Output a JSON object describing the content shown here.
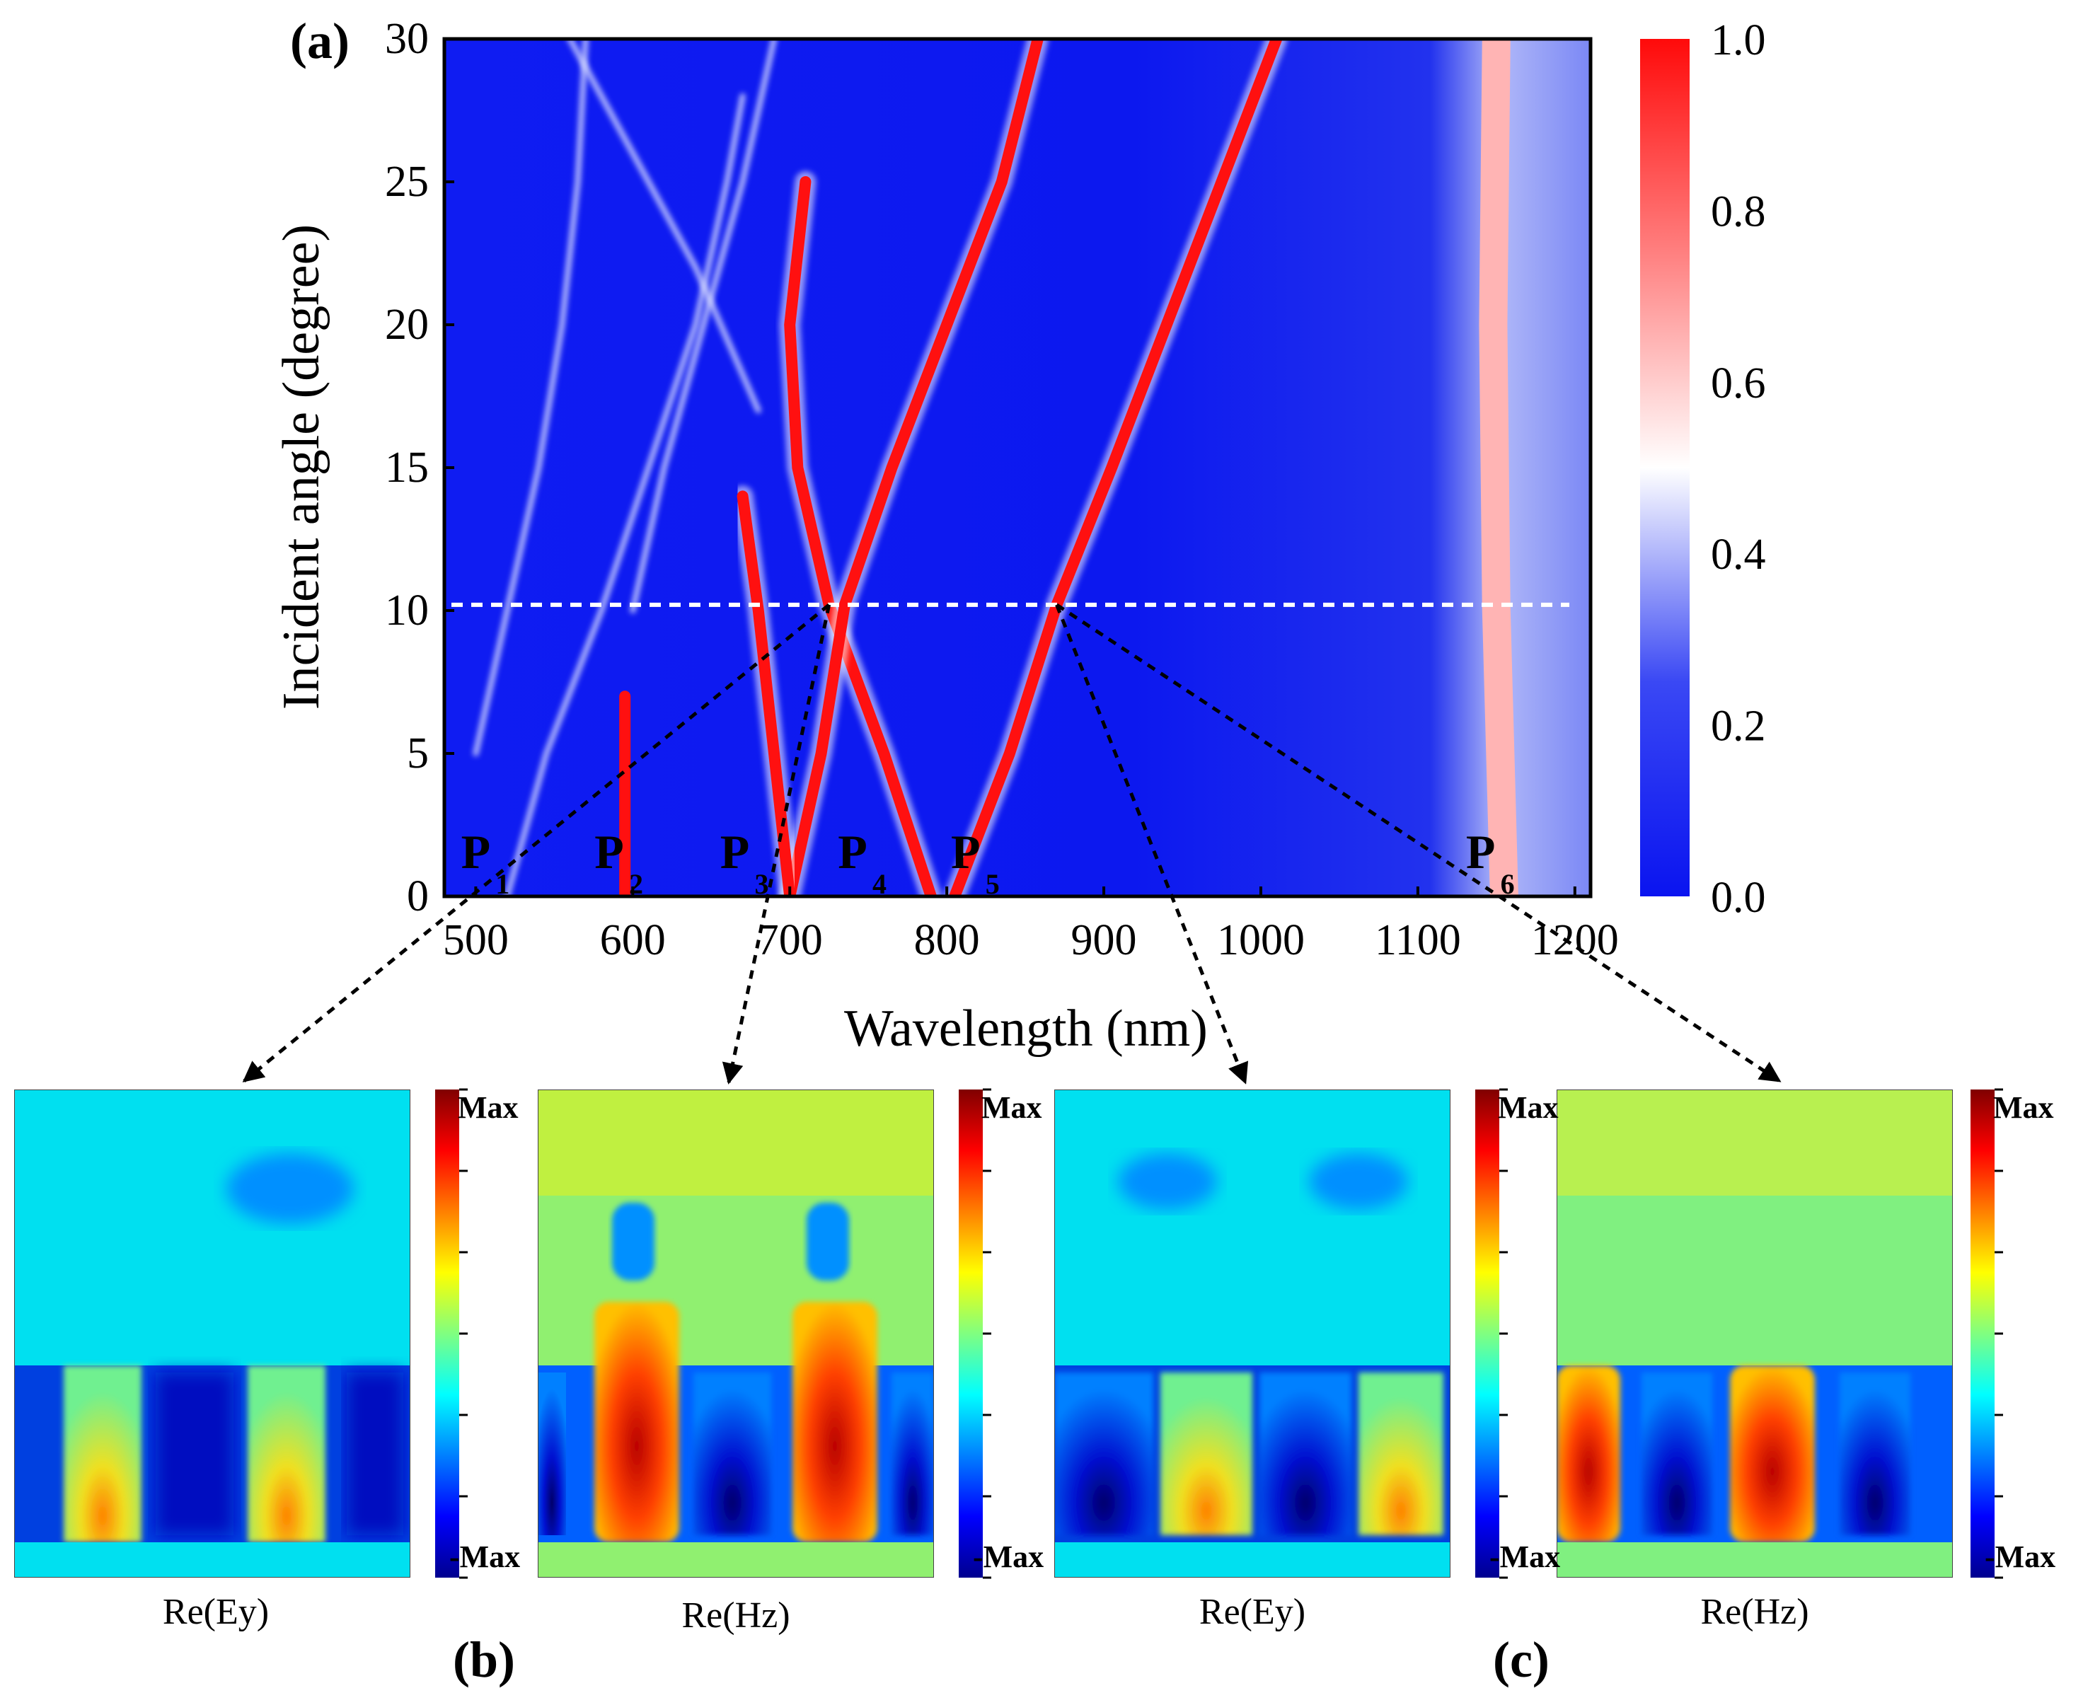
{
  "panel_labels": {
    "a": "(a)",
    "b": "(b)",
    "c": "(c)"
  },
  "chart_data": {
    "type": "heatmap",
    "title": "",
    "xlabel": "Wavelength (nm)",
    "ylabel": "Incident angle (degree)",
    "xlim": [
      480,
      1210
    ],
    "ylim": [
      0,
      30
    ],
    "x_ticks": [
      "500",
      "600",
      "700",
      "800",
      "900",
      "1000",
      "1100",
      "1200"
    ],
    "y_ticks": [
      "0",
      "5",
      "10",
      "15",
      "20",
      "25",
      "30"
    ],
    "colorbar": {
      "range": [
        0.0,
        1.0
      ],
      "ticks": [
        "0.0",
        "0.2",
        "0.4",
        "0.6",
        "0.8",
        "1.0"
      ],
      "colors": {
        "low": "#0a14f0",
        "mid": "#ffffff",
        "high": "#ff0a0a"
      }
    },
    "reference_line": {
      "angle": 10.2,
      "style": "dashed",
      "color": "#ffffff"
    },
    "peaks": [
      {
        "label": "P",
        "sub": "1",
        "x": 500
      },
      {
        "label": "P",
        "sub": "2",
        "x": 585
      },
      {
        "label": "P",
        "sub": "3",
        "x": 665
      },
      {
        "label": "P",
        "sub": "4",
        "x": 740
      },
      {
        "label": "P",
        "sub": "5",
        "x": 812
      },
      {
        "label": "P",
        "sub": "6",
        "x": 1140
      }
    ],
    "modes": [
      {
        "name": "strong-left",
        "points": [
          [
            790,
            0
          ],
          [
            760,
            5
          ],
          [
            725,
            10.2
          ],
          [
            705,
            15
          ],
          [
            700,
            20
          ],
          [
            710,
            25
          ]
        ]
      },
      {
        "name": "strong-mid",
        "points": [
          [
            700,
            0
          ],
          [
            720,
            5
          ],
          [
            735,
            10.2
          ],
          [
            765,
            15
          ],
          [
            800,
            20
          ],
          [
            835,
            25
          ],
          [
            858,
            30
          ]
        ]
      },
      {
        "name": "strong-right",
        "points": [
          [
            805,
            0
          ],
          [
            840,
            5
          ],
          [
            870,
            10.2
          ],
          [
            905,
            15
          ],
          [
            940,
            20
          ],
          [
            975,
            25
          ],
          [
            1010,
            30
          ]
        ]
      },
      {
        "name": "mode-p3",
        "points": [
          [
            700,
            0
          ],
          [
            690,
            5
          ],
          [
            680,
            10
          ],
          [
            670,
            14
          ]
        ]
      },
      {
        "name": "mode-p2",
        "points": [
          [
            595,
            0
          ],
          [
            595,
            4
          ],
          [
            595,
            7
          ]
        ]
      },
      {
        "name": "mode-p1-right",
        "points": [
          [
            520,
            0
          ],
          [
            545,
            5
          ],
          [
            580,
            10
          ],
          [
            610,
            15
          ],
          [
            640,
            20
          ],
          [
            660,
            25
          ],
          [
            670,
            28
          ]
        ]
      },
      {
        "name": "weak-1",
        "points": [
          [
            500,
            5
          ],
          [
            520,
            10
          ],
          [
            540,
            15
          ],
          [
            555,
            20
          ],
          [
            565,
            25
          ],
          [
            570,
            30
          ]
        ]
      },
      {
        "name": "weak-2",
        "points": [
          [
            600,
            10
          ],
          [
            620,
            15
          ],
          [
            645,
            20
          ],
          [
            670,
            25
          ],
          [
            690,
            30
          ]
        ]
      },
      {
        "name": "weak-3",
        "points": [
          [
            560,
            30
          ],
          [
            600,
            26
          ],
          [
            640,
            22
          ],
          [
            680,
            17
          ]
        ]
      },
      {
        "name": "p6-band",
        "points": [
          [
            1155,
            0
          ],
          [
            1150,
            10
          ],
          [
            1148,
            20
          ],
          [
            1150,
            30
          ]
        ]
      }
    ],
    "intersections": [
      {
        "name": "cross-left",
        "x": 725,
        "y": 10.2
      },
      {
        "name": "cross-right",
        "x": 870,
        "y": 10.2
      }
    ]
  },
  "field_maps": [
    {
      "caption": "Re(Ey)",
      "max": "Max",
      "min": "-Max"
    },
    {
      "caption": "Re(Hz)",
      "max": "Max",
      "min": "-Max"
    },
    {
      "caption": "Re(Ey)",
      "max": "Max",
      "min": "-Max"
    },
    {
      "caption": "Re(Hz)",
      "max": "Max",
      "min": "-Max"
    }
  ]
}
